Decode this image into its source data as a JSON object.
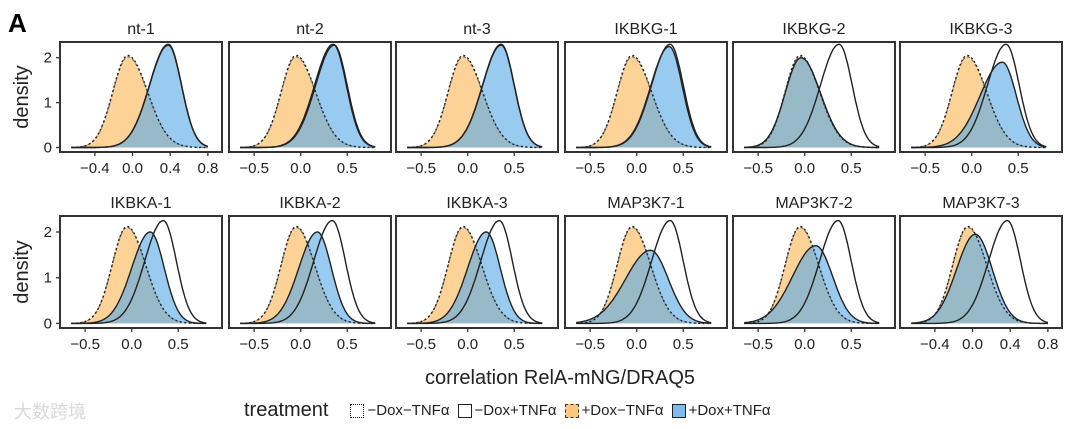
{
  "chart_data": {
    "type": "area",
    "panel_label": "A",
    "xlabel": "correlation RelA-mNG/DRAQ5",
    "ylabel": "density",
    "ylim": [
      -0.1,
      2.35
    ],
    "yticks": [
      "0",
      "1",
      "2"
    ],
    "legend": {
      "title": "treatment",
      "placement": "bottom",
      "entries": [
        "−Dox−TNFα",
        "−Dox+TNFα",
        "+Dox−TNFα",
        "+Dox+TNFα"
      ]
    },
    "series_style": [
      {
        "name": "−Dox−TNFα",
        "fill": "none",
        "stroke": "#222222",
        "dash": "dotted"
      },
      {
        "name": "−Dox+TNFα",
        "fill": "none",
        "stroke": "#222222",
        "dash": "solid"
      },
      {
        "name": "+Dox−TNFα",
        "fill": "#fbb657",
        "stroke": "#444444",
        "dash": "dashed"
      },
      {
        "name": "+Dox+TNFα",
        "fill": "#5aaae6",
        "stroke": "#222222",
        "dash": "solid"
      }
    ],
    "panels": [
      {
        "title": "nt-1",
        "xlim": [
          -0.77,
          0.95
        ],
        "xticks": [
          -0.4,
          0.0,
          0.4,
          0.8
        ],
        "xtick_labels": [
          "−0.4",
          "0.0",
          "0.4",
          "0.8"
        ],
        "series": [
          {
            "mode": -0.05,
            "peak": 2.05,
            "sdL": 0.16,
            "sdR": 0.21
          },
          {
            "mode": 0.38,
            "peak": 2.3,
            "sdL": 0.2,
            "sdR": 0.14
          },
          {
            "mode": -0.05,
            "peak": 2.02,
            "sdL": 0.16,
            "sdR": 0.21
          },
          {
            "mode": 0.38,
            "peak": 2.28,
            "sdL": 0.2,
            "sdR": 0.14
          }
        ]
      },
      {
        "title": "nt-2",
        "xlim": [
          -0.77,
          0.97
        ],
        "xticks": [
          -0.5,
          0.0,
          0.5
        ],
        "xtick_labels": [
          "−0.5",
          "0.0",
          "0.5"
        ],
        "series": [
          {
            "mode": -0.05,
            "peak": 2.05,
            "sdL": 0.16,
            "sdR": 0.21
          },
          {
            "mode": 0.35,
            "peak": 2.3,
            "sdL": 0.2,
            "sdR": 0.14
          },
          {
            "mode": -0.05,
            "peak": 2.02,
            "sdL": 0.16,
            "sdR": 0.21
          },
          {
            "mode": 0.36,
            "peak": 2.28,
            "sdL": 0.2,
            "sdR": 0.14
          }
        ]
      },
      {
        "title": "nt-3",
        "xlim": [
          -0.77,
          0.97
        ],
        "xticks": [
          -0.5,
          0.0,
          0.5
        ],
        "xtick_labels": [
          "−0.5",
          "0.0",
          "0.5"
        ],
        "series": [
          {
            "mode": -0.05,
            "peak": 2.05,
            "sdL": 0.16,
            "sdR": 0.21
          },
          {
            "mode": 0.36,
            "peak": 2.3,
            "sdL": 0.2,
            "sdR": 0.14
          },
          {
            "mode": -0.05,
            "peak": 2.02,
            "sdL": 0.16,
            "sdR": 0.21
          },
          {
            "mode": 0.36,
            "peak": 2.28,
            "sdL": 0.2,
            "sdR": 0.14
          }
        ]
      },
      {
        "title": "IKBKG-1",
        "xlim": [
          -0.77,
          0.97
        ],
        "xticks": [
          -0.5,
          0.0,
          0.5
        ],
        "xtick_labels": [
          "−0.5",
          "0.0",
          "0.5"
        ],
        "series": [
          {
            "mode": -0.05,
            "peak": 2.05,
            "sdL": 0.16,
            "sdR": 0.21
          },
          {
            "mode": 0.36,
            "peak": 2.3,
            "sdL": 0.2,
            "sdR": 0.14
          },
          {
            "mode": -0.05,
            "peak": 2.02,
            "sdL": 0.16,
            "sdR": 0.21
          },
          {
            "mode": 0.35,
            "peak": 2.25,
            "sdL": 0.2,
            "sdR": 0.14
          }
        ]
      },
      {
        "title": "IKBKG-2",
        "xlim": [
          -0.77,
          0.97
        ],
        "xticks": [
          -0.5,
          0.0,
          0.5
        ],
        "xtick_labels": [
          "−0.5",
          "0.0",
          "0.5"
        ],
        "series": [
          {
            "mode": -0.05,
            "peak": 2.05,
            "sdL": 0.16,
            "sdR": 0.21
          },
          {
            "mode": 0.37,
            "peak": 2.3,
            "sdL": 0.2,
            "sdR": 0.14
          },
          {
            "mode": -0.05,
            "peak": 2.02,
            "sdL": 0.16,
            "sdR": 0.21
          },
          {
            "mode": -0.04,
            "peak": 2.0,
            "sdL": 0.17,
            "sdR": 0.21
          }
        ]
      },
      {
        "title": "IKBKG-3",
        "xlim": [
          -0.77,
          0.97
        ],
        "xticks": [
          -0.5,
          0.0,
          0.5
        ],
        "xtick_labels": [
          "−0.5",
          "0.0",
          "0.5"
        ],
        "series": [
          {
            "mode": -0.05,
            "peak": 2.05,
            "sdL": 0.16,
            "sdR": 0.21
          },
          {
            "mode": 0.37,
            "peak": 2.3,
            "sdL": 0.2,
            "sdR": 0.14
          },
          {
            "mode": -0.05,
            "peak": 2.02,
            "sdL": 0.16,
            "sdR": 0.21
          },
          {
            "mode": 0.33,
            "peak": 1.9,
            "sdL": 0.24,
            "sdR": 0.15
          }
        ]
      },
      {
        "title": "IKBKA-1",
        "xlim": [
          -0.77,
          0.97
        ],
        "xticks": [
          -0.5,
          0.0,
          0.5
        ],
        "xtick_labels": [
          "−0.5",
          "0.0",
          "0.5"
        ],
        "series": [
          {
            "mode": -0.05,
            "peak": 2.12,
            "sdL": 0.16,
            "sdR": 0.2
          },
          {
            "mode": 0.34,
            "peak": 2.25,
            "sdL": 0.2,
            "sdR": 0.14
          },
          {
            "mode": -0.05,
            "peak": 2.1,
            "sdL": 0.16,
            "sdR": 0.2
          },
          {
            "mode": 0.2,
            "peak": 2.0,
            "sdL": 0.2,
            "sdR": 0.15
          }
        ]
      },
      {
        "title": "IKBKA-2",
        "xlim": [
          -0.77,
          0.97
        ],
        "xticks": [
          -0.5,
          0.0,
          0.5
        ],
        "xtick_labels": [
          "−0.5",
          "0.0",
          "0.5"
        ],
        "series": [
          {
            "mode": -0.05,
            "peak": 2.12,
            "sdL": 0.16,
            "sdR": 0.2
          },
          {
            "mode": 0.34,
            "peak": 2.25,
            "sdL": 0.2,
            "sdR": 0.14
          },
          {
            "mode": -0.05,
            "peak": 2.1,
            "sdL": 0.16,
            "sdR": 0.2
          },
          {
            "mode": 0.18,
            "peak": 2.0,
            "sdL": 0.2,
            "sdR": 0.15
          }
        ]
      },
      {
        "title": "IKBKA-3",
        "xlim": [
          -0.77,
          0.97
        ],
        "xticks": [
          -0.5,
          0.0,
          0.5
        ],
        "xtick_labels": [
          "−0.5",
          "0.0",
          "0.5"
        ],
        "series": [
          {
            "mode": -0.05,
            "peak": 2.12,
            "sdL": 0.16,
            "sdR": 0.2
          },
          {
            "mode": 0.34,
            "peak": 2.25,
            "sdL": 0.2,
            "sdR": 0.14
          },
          {
            "mode": -0.05,
            "peak": 2.1,
            "sdL": 0.16,
            "sdR": 0.2
          },
          {
            "mode": 0.2,
            "peak": 2.0,
            "sdL": 0.2,
            "sdR": 0.15
          }
        ]
      },
      {
        "title": "MAP3K7-1",
        "xlim": [
          -0.77,
          0.97
        ],
        "xticks": [
          -0.5,
          0.0,
          0.5
        ],
        "xtick_labels": [
          "−0.5",
          "0.0",
          "0.5"
        ],
        "series": [
          {
            "mode": -0.05,
            "peak": 2.12,
            "sdL": 0.16,
            "sdR": 0.2
          },
          {
            "mode": 0.36,
            "peak": 2.25,
            "sdL": 0.2,
            "sdR": 0.14
          },
          {
            "mode": -0.05,
            "peak": 2.1,
            "sdL": 0.16,
            "sdR": 0.2
          },
          {
            "mode": 0.15,
            "peak": 1.6,
            "sdL": 0.27,
            "sdR": 0.19
          }
        ]
      },
      {
        "title": "MAP3K7-2",
        "xlim": [
          -0.77,
          0.97
        ],
        "xticks": [
          -0.5,
          0.0,
          0.5
        ],
        "xtick_labels": [
          "−0.5",
          "0.0",
          "0.5"
        ],
        "series": [
          {
            "mode": -0.05,
            "peak": 2.12,
            "sdL": 0.16,
            "sdR": 0.2
          },
          {
            "mode": 0.36,
            "peak": 2.25,
            "sdL": 0.2,
            "sdR": 0.14
          },
          {
            "mode": -0.05,
            "peak": 2.1,
            "sdL": 0.16,
            "sdR": 0.2
          },
          {
            "mode": 0.12,
            "peak": 1.7,
            "sdL": 0.25,
            "sdR": 0.18
          }
        ]
      },
      {
        "title": "MAP3K7-3",
        "xlim": [
          -0.77,
          0.95
        ],
        "xticks": [
          -0.4,
          0.0,
          0.4,
          0.8
        ],
        "xtick_labels": [
          "−0.4",
          "0.0",
          "0.4",
          "0.8"
        ],
        "series": [
          {
            "mode": -0.05,
            "peak": 2.12,
            "sdL": 0.16,
            "sdR": 0.2
          },
          {
            "mode": 0.37,
            "peak": 2.25,
            "sdL": 0.2,
            "sdR": 0.14
          },
          {
            "mode": -0.05,
            "peak": 2.1,
            "sdL": 0.16,
            "sdR": 0.2
          },
          {
            "mode": 0.03,
            "peak": 1.95,
            "sdL": 0.2,
            "sdR": 0.18
          }
        ]
      }
    ]
  },
  "watermark": "大数跨境"
}
